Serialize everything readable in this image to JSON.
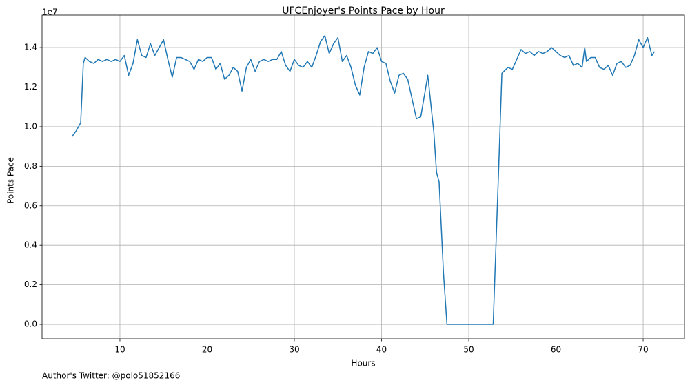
{
  "chart_data": {
    "type": "line",
    "title": "UFCEnjoyer's Points Pace by Hour",
    "x_label": "Hours",
    "y_label": "Points Pace",
    "y_offset_label": "1e7",
    "footnote": "Author's Twitter: @polo51852166",
    "grid": true,
    "xlim": [
      1.07,
      74.74
    ],
    "ylim": [
      -0.073,
      1.564
    ],
    "xticks": [
      10,
      20,
      30,
      40,
      50,
      60,
      70
    ],
    "yticks": [
      {
        "value": 0,
        "label": "0.0"
      },
      {
        "value": 0.2,
        "label": "0.2"
      },
      {
        "value": 0.4,
        "label": "0.4"
      },
      {
        "value": 0.6,
        "label": "0.6"
      },
      {
        "value": 0.8,
        "label": "0.8"
      },
      {
        "value": 1,
        "label": "1.0"
      },
      {
        "value": 1.2,
        "label": "1.2"
      },
      {
        "value": 1.4,
        "label": "1.4"
      }
    ],
    "x": [
      4.5,
      5.0,
      5.5,
      5.8,
      6.0,
      6.5,
      7.0,
      7.5,
      8.0,
      8.5,
      9.0,
      9.5,
      10.0,
      10.5,
      11.0,
      11.5,
      12.0,
      12.5,
      13.0,
      13.5,
      14.0,
      14.5,
      15.0,
      15.5,
      16.0,
      16.5,
      17.0,
      17.5,
      18.0,
      18.5,
      19.0,
      19.5,
      20.0,
      20.5,
      21.0,
      21.5,
      22.0,
      22.5,
      23.0,
      23.5,
      24.0,
      24.5,
      25.0,
      25.5,
      26.0,
      26.5,
      27.0,
      27.5,
      28.0,
      28.5,
      29.0,
      29.5,
      30.0,
      30.5,
      31.0,
      31.5,
      32.0,
      32.5,
      33.0,
      33.5,
      34.0,
      34.5,
      35.0,
      35.5,
      36.0,
      36.5,
      37.0,
      37.5,
      38.0,
      38.5,
      39.0,
      39.5,
      40.0,
      40.5,
      41.0,
      41.5,
      42.0,
      42.5,
      43.0,
      43.5,
      44.0,
      44.5,
      45.0,
      45.3,
      46.0,
      46.3,
      46.6,
      47.1,
      47.5,
      48.0,
      50.0,
      52.8,
      53.4,
      53.8,
      54.5,
      55.0,
      55.5,
      56.0,
      56.5,
      57.0,
      57.5,
      58.0,
      58.5,
      59.0,
      59.5,
      60.0,
      60.5,
      61.0,
      61.5,
      62.0,
      62.5,
      63.0,
      63.3,
      63.5,
      64.0,
      64.5,
      65.0,
      65.5,
      66.0,
      66.5,
      67.0,
      67.5,
      68.0,
      68.5,
      69.0,
      69.5,
      70.0,
      70.5,
      71.0,
      71.3
    ],
    "series": [
      {
        "name": "Points Pace",
        "color": "#1f77b4",
        "values": [
          0.95,
          0.98,
          1.02,
          1.32,
          1.35,
          1.33,
          1.32,
          1.34,
          1.33,
          1.34,
          1.33,
          1.34,
          1.33,
          1.36,
          1.26,
          1.32,
          1.44,
          1.36,
          1.35,
          1.42,
          1.36,
          1.4,
          1.44,
          1.34,
          1.25,
          1.35,
          1.35,
          1.34,
          1.33,
          1.29,
          1.34,
          1.33,
          1.35,
          1.35,
          1.29,
          1.32,
          1.24,
          1.26,
          1.3,
          1.28,
          1.18,
          1.3,
          1.34,
          1.28,
          1.33,
          1.34,
          1.33,
          1.34,
          1.34,
          1.38,
          1.31,
          1.28,
          1.34,
          1.31,
          1.3,
          1.33,
          1.3,
          1.36,
          1.43,
          1.46,
          1.37,
          1.42,
          1.45,
          1.33,
          1.36,
          1.3,
          1.21,
          1.16,
          1.3,
          1.38,
          1.37,
          1.4,
          1.33,
          1.32,
          1.23,
          1.17,
          1.26,
          1.27,
          1.24,
          1.14,
          1.04,
          1.05,
          1.18,
          1.26,
          0.97,
          0.77,
          0.72,
          0.26,
          0,
          0,
          0,
          0,
          0.75,
          1.27,
          1.3,
          1.29,
          1.34,
          1.39,
          1.37,
          1.38,
          1.36,
          1.38,
          1.37,
          1.38,
          1.4,
          1.38,
          1.36,
          1.35,
          1.36,
          1.31,
          1.32,
          1.3,
          1.4,
          1.33,
          1.35,
          1.35,
          1.3,
          1.29,
          1.31,
          1.26,
          1.32,
          1.33,
          1.3,
          1.31,
          1.36,
          1.44,
          1.4,
          1.45,
          1.36,
          1.38
        ]
      }
    ]
  }
}
